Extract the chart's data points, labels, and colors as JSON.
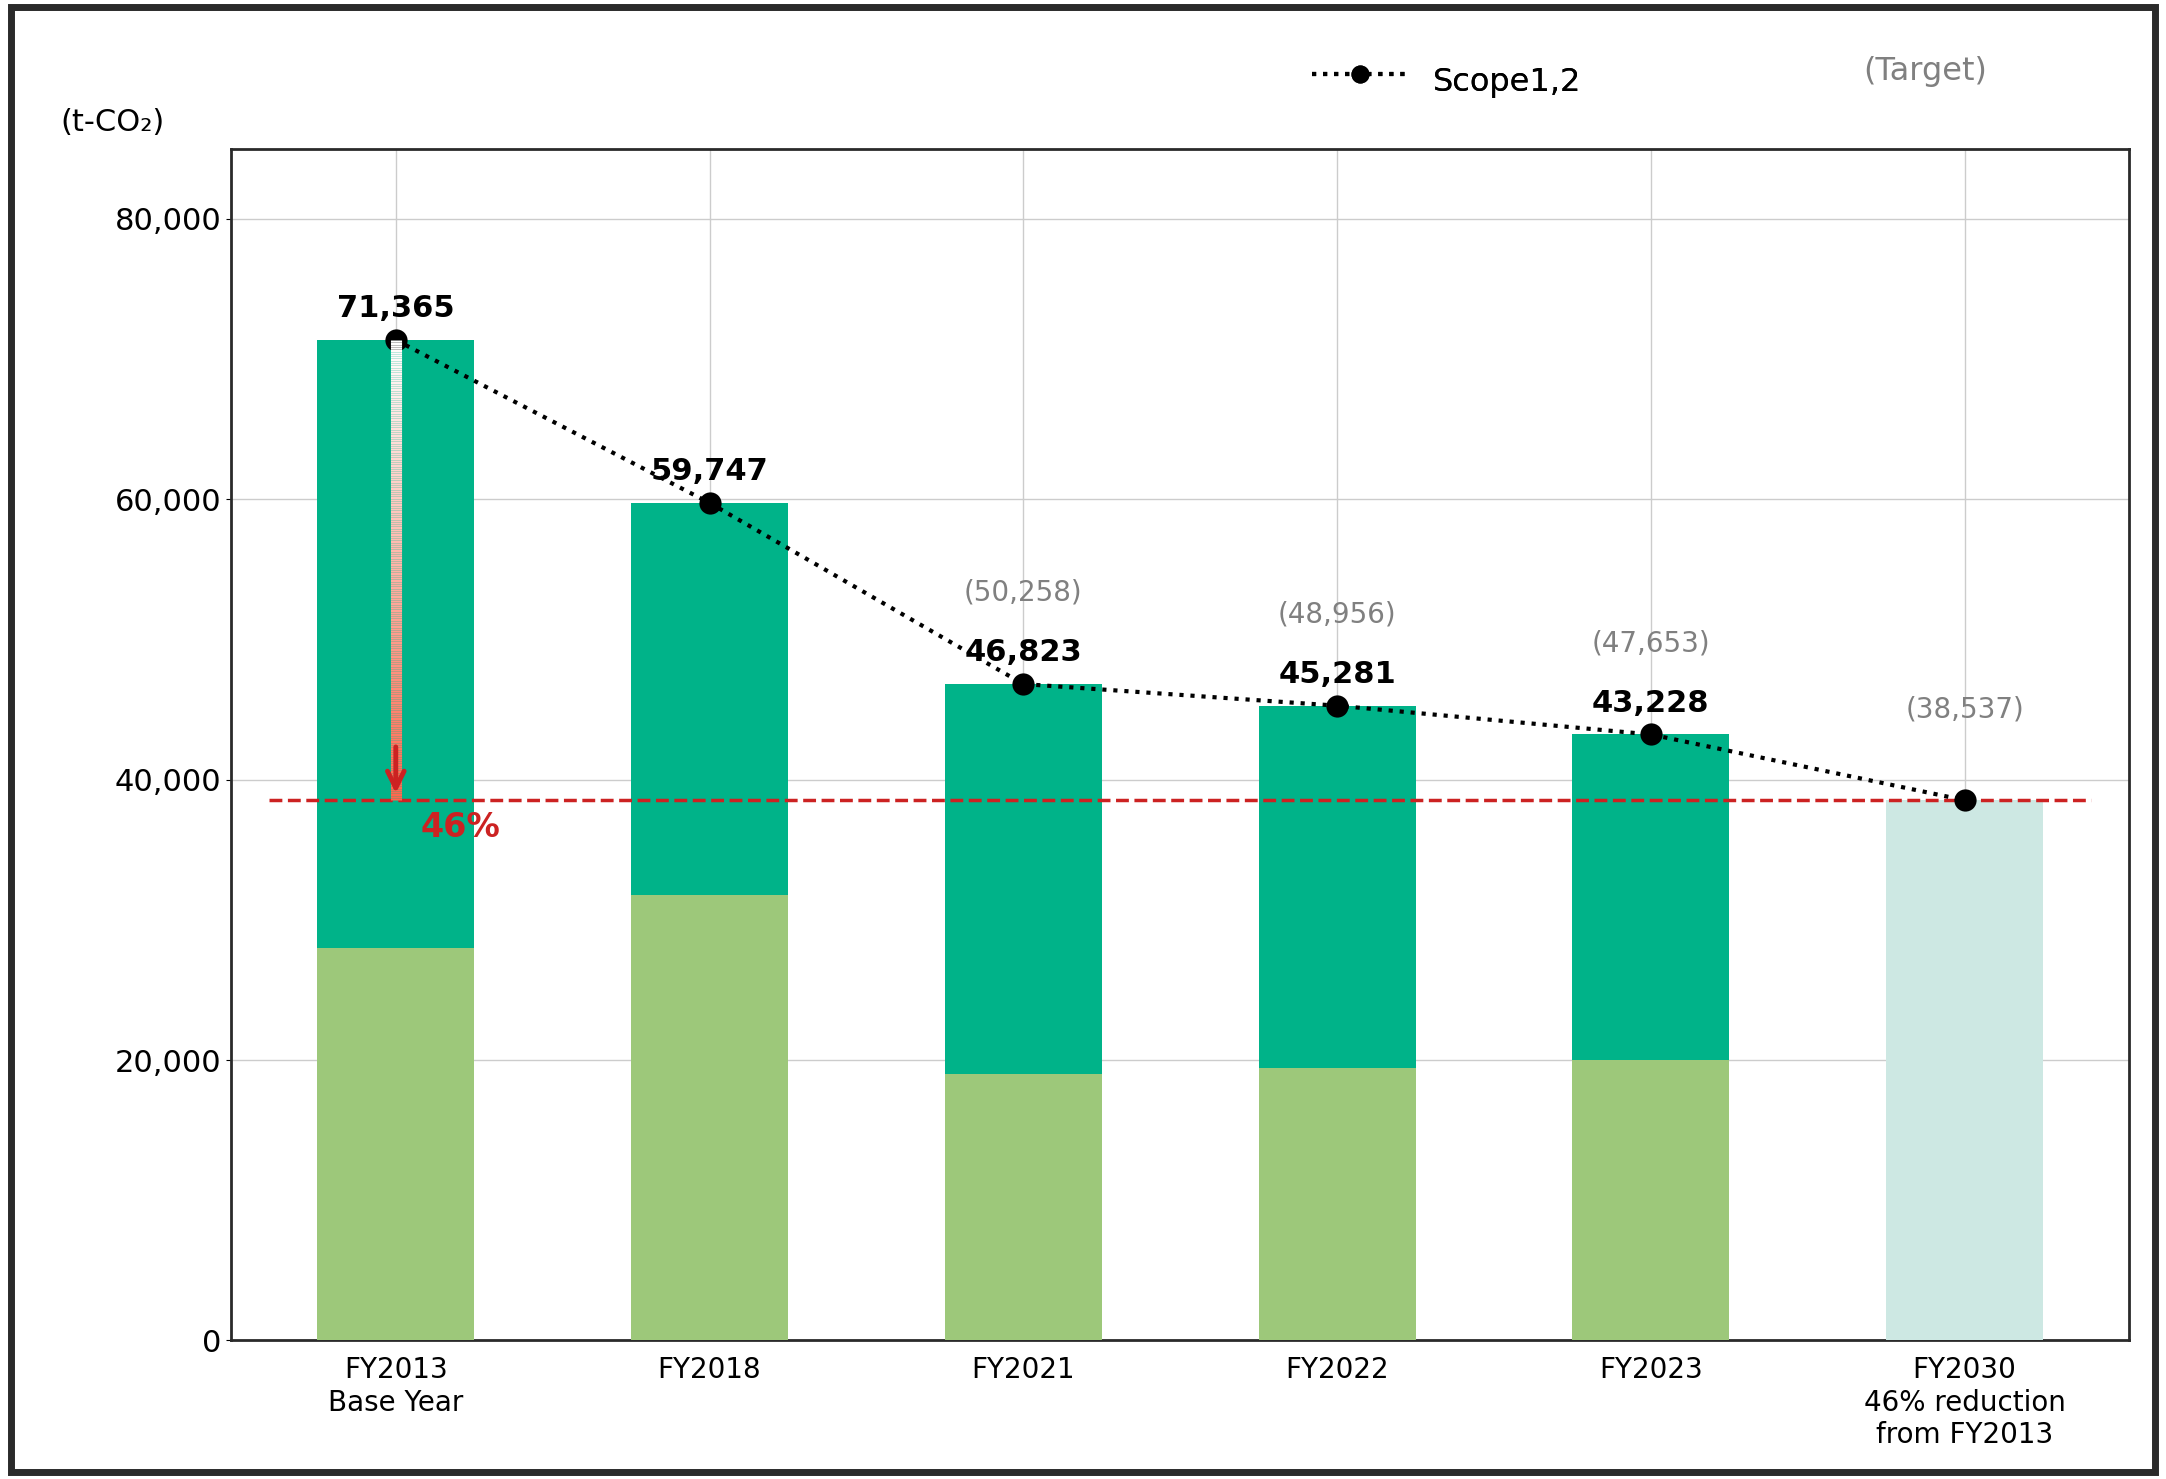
{
  "categories": [
    "FY2013\nBase Year",
    "FY2018",
    "FY2021",
    "FY2022",
    "FY2023",
    "FY2030\n46% reduction\nfrom FY2013"
  ],
  "scope1_values": [
    43365,
    27947,
    27823,
    25881,
    23228,
    0
  ],
  "scope2_values": [
    28000,
    31800,
    19000,
    19400,
    20000,
    38537
  ],
  "scope12_actual": [
    71365,
    59747,
    46823,
    45281,
    43228,
    38537
  ],
  "scope12_target": [
    null,
    null,
    50258,
    48956,
    47653,
    38537
  ],
  "target_line_y": 38537,
  "color_scope1": "#00b389",
  "color_scope2": "#9dc87a",
  "color_scope2_target": "#cde8e3",
  "color_line": "#000000",
  "color_target_line": "#cc2222",
  "ylim": [
    0,
    85000
  ],
  "yticks": [
    0,
    20000,
    40000,
    60000,
    80000
  ],
  "ylabel": "(t-CO₂)",
  "fig_width": 21.66,
  "fig_height": 14.79,
  "dpi": 100,
  "actual_labels": [
    "71,365",
    "59,747",
    "46,823",
    "45,281",
    "43,228",
    ""
  ],
  "target_labels": [
    "",
    "",
    "(50,258)",
    "(48,956)",
    "(47,653)",
    "(38,537)"
  ],
  "arrow_label": "46%",
  "arrow_from": 71365,
  "arrow_to": 38537
}
